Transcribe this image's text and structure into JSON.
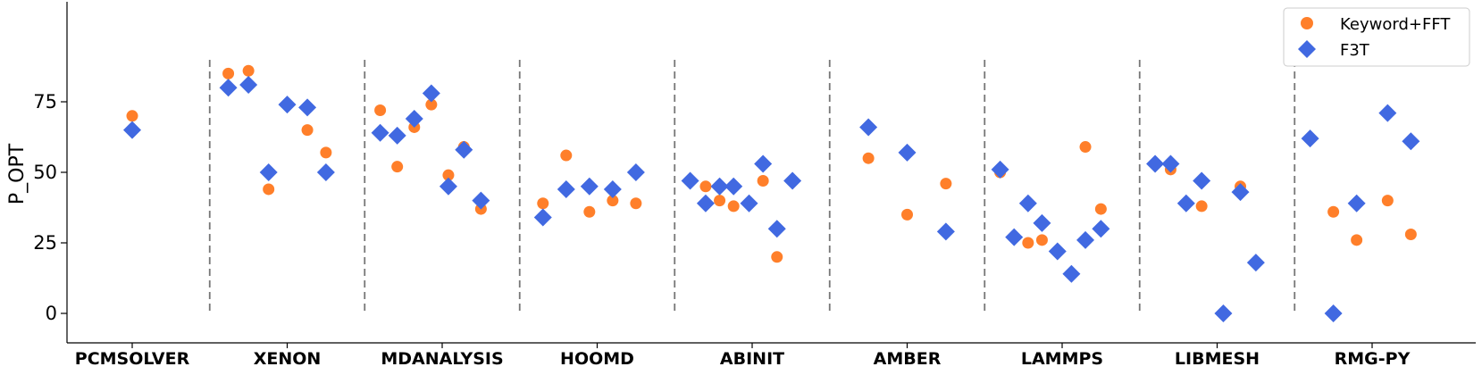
{
  "chart_data": {
    "type": "scatter",
    "ylabel": "P_OPT",
    "xlabel": "",
    "ylim": [
      -10,
      110
    ],
    "yticks": [
      0,
      25,
      50,
      75
    ],
    "categories": [
      "PCMSOLVER",
      "XENON",
      "MDANALYSIS",
      "HOOMD",
      "ABINIT",
      "AMBER",
      "LAMMPS",
      "LIBMESH",
      "RMG-PY"
    ],
    "series": [
      {
        "name": "Keyword+FFT",
        "marker": "circle",
        "color": "#ff7f2a",
        "points": [
          {
            "category": "PCMSOLVER",
            "offset": 0.0,
            "y": 70
          },
          {
            "category": "XENON",
            "offset": -0.38,
            "y": 85
          },
          {
            "category": "XENON",
            "offset": -0.25,
            "y": 86
          },
          {
            "category": "XENON",
            "offset": -0.12,
            "y": 44
          },
          {
            "category": "XENON",
            "offset": 0.13,
            "y": 65
          },
          {
            "category": "XENON",
            "offset": 0.25,
            "y": 57
          },
          {
            "category": "MDANALYSIS",
            "offset": -0.4,
            "y": 72
          },
          {
            "category": "MDANALYSIS",
            "offset": -0.29,
            "y": 52
          },
          {
            "category": "MDANALYSIS",
            "offset": -0.18,
            "y": 66
          },
          {
            "category": "MDANALYSIS",
            "offset": -0.07,
            "y": 74
          },
          {
            "category": "MDANALYSIS",
            "offset": 0.04,
            "y": 49
          },
          {
            "category": "MDANALYSIS",
            "offset": 0.14,
            "y": 59
          },
          {
            "category": "MDANALYSIS",
            "offset": 0.25,
            "y": 37
          },
          {
            "category": "HOOMD",
            "offset": -0.35,
            "y": 39
          },
          {
            "category": "HOOMD",
            "offset": -0.2,
            "y": 56
          },
          {
            "category": "HOOMD",
            "offset": -0.05,
            "y": 36
          },
          {
            "category": "HOOMD",
            "offset": 0.1,
            "y": 40
          },
          {
            "category": "HOOMD",
            "offset": 0.25,
            "y": 39
          },
          {
            "category": "ABINIT",
            "offset": -0.3,
            "y": 45
          },
          {
            "category": "ABINIT",
            "offset": -0.21,
            "y": 40
          },
          {
            "category": "ABINIT",
            "offset": -0.12,
            "y": 38
          },
          {
            "category": "ABINIT",
            "offset": 0.07,
            "y": 47
          },
          {
            "category": "ABINIT",
            "offset": 0.16,
            "y": 20
          },
          {
            "category": "AMBER",
            "offset": -0.25,
            "y": 55
          },
          {
            "category": "AMBER",
            "offset": 0.0,
            "y": 35
          },
          {
            "category": "AMBER",
            "offset": 0.25,
            "y": 46
          },
          {
            "category": "LAMMPS",
            "offset": -0.4,
            "y": 50
          },
          {
            "category": "LAMMPS",
            "offset": -0.22,
            "y": 25
          },
          {
            "category": "LAMMPS",
            "offset": -0.13,
            "y": 26
          },
          {
            "category": "LAMMPS",
            "offset": 0.15,
            "y": 59
          },
          {
            "category": "LAMMPS",
            "offset": 0.25,
            "y": 37
          },
          {
            "category": "LIBMESH",
            "offset": -0.3,
            "y": 51
          },
          {
            "category": "LIBMESH",
            "offset": -0.1,
            "y": 38
          },
          {
            "category": "LIBMESH",
            "offset": 0.15,
            "y": 45
          },
          {
            "category": "RMG-PY",
            "offset": -0.25,
            "y": 36
          },
          {
            "category": "RMG-PY",
            "offset": -0.1,
            "y": 26
          },
          {
            "category": "RMG-PY",
            "offset": 0.1,
            "y": 40
          },
          {
            "category": "RMG-PY",
            "offset": 0.25,
            "y": 28
          }
        ]
      },
      {
        "name": "F3T",
        "marker": "diamond",
        "color": "#4169e1",
        "points": [
          {
            "category": "PCMSOLVER",
            "offset": 0.0,
            "y": 65
          },
          {
            "category": "XENON",
            "offset": -0.38,
            "y": 80
          },
          {
            "category": "XENON",
            "offset": -0.25,
            "y": 81
          },
          {
            "category": "XENON",
            "offset": -0.12,
            "y": 50
          },
          {
            "category": "XENON",
            "offset": 0.0,
            "y": 74
          },
          {
            "category": "XENON",
            "offset": 0.13,
            "y": 73
          },
          {
            "category": "XENON",
            "offset": 0.25,
            "y": 50
          },
          {
            "category": "MDANALYSIS",
            "offset": -0.4,
            "y": 64
          },
          {
            "category": "MDANALYSIS",
            "offset": -0.29,
            "y": 63
          },
          {
            "category": "MDANALYSIS",
            "offset": -0.18,
            "y": 69
          },
          {
            "category": "MDANALYSIS",
            "offset": -0.07,
            "y": 78
          },
          {
            "category": "MDANALYSIS",
            "offset": 0.04,
            "y": 45
          },
          {
            "category": "MDANALYSIS",
            "offset": 0.14,
            "y": 58
          },
          {
            "category": "MDANALYSIS",
            "offset": 0.25,
            "y": 40
          },
          {
            "category": "HOOMD",
            "offset": -0.35,
            "y": 34
          },
          {
            "category": "HOOMD",
            "offset": -0.2,
            "y": 44
          },
          {
            "category": "HOOMD",
            "offset": -0.05,
            "y": 45
          },
          {
            "category": "HOOMD",
            "offset": 0.1,
            "y": 44
          },
          {
            "category": "HOOMD",
            "offset": 0.25,
            "y": 50
          },
          {
            "category": "ABINIT",
            "offset": -0.4,
            "y": 47
          },
          {
            "category": "ABINIT",
            "offset": -0.3,
            "y": 39
          },
          {
            "category": "ABINIT",
            "offset": -0.21,
            "y": 45
          },
          {
            "category": "ABINIT",
            "offset": -0.12,
            "y": 45
          },
          {
            "category": "ABINIT",
            "offset": -0.02,
            "y": 39
          },
          {
            "category": "ABINIT",
            "offset": 0.07,
            "y": 53
          },
          {
            "category": "ABINIT",
            "offset": 0.16,
            "y": 30
          },
          {
            "category": "ABINIT",
            "offset": 0.26,
            "y": 47
          },
          {
            "category": "AMBER",
            "offset": -0.25,
            "y": 66
          },
          {
            "category": "AMBER",
            "offset": 0.0,
            "y": 57
          },
          {
            "category": "AMBER",
            "offset": 0.25,
            "y": 29
          },
          {
            "category": "LAMMPS",
            "offset": -0.4,
            "y": 51
          },
          {
            "category": "LAMMPS",
            "offset": -0.31,
            "y": 27
          },
          {
            "category": "LAMMPS",
            "offset": -0.22,
            "y": 39
          },
          {
            "category": "LAMMPS",
            "offset": -0.13,
            "y": 32
          },
          {
            "category": "LAMMPS",
            "offset": -0.03,
            "y": 22
          },
          {
            "category": "LAMMPS",
            "offset": 0.06,
            "y": 14
          },
          {
            "category": "LAMMPS",
            "offset": 0.15,
            "y": 26
          },
          {
            "category": "LAMMPS",
            "offset": 0.25,
            "y": 30
          },
          {
            "category": "LIBMESH",
            "offset": -0.4,
            "y": 53
          },
          {
            "category": "LIBMESH",
            "offset": -0.3,
            "y": 53
          },
          {
            "category": "LIBMESH",
            "offset": -0.2,
            "y": 39
          },
          {
            "category": "LIBMESH",
            "offset": -0.1,
            "y": 47
          },
          {
            "category": "LIBMESH",
            "offset": 0.04,
            "y": 0
          },
          {
            "category": "LIBMESH",
            "offset": 0.15,
            "y": 43
          },
          {
            "category": "LIBMESH",
            "offset": 0.25,
            "y": 18
          },
          {
            "category": "RMG-PY",
            "offset": -0.4,
            "y": 62
          },
          {
            "category": "RMG-PY",
            "offset": -0.25,
            "y": 0
          },
          {
            "category": "RMG-PY",
            "offset": -0.1,
            "y": 39
          },
          {
            "category": "RMG-PY",
            "offset": 0.1,
            "y": 71
          },
          {
            "category": "RMG-PY",
            "offset": 0.25,
            "y": 61
          }
        ]
      }
    ],
    "separators": true,
    "grid": false,
    "legend": {
      "position": "top-right",
      "entries": [
        "Keyword+FFT",
        "F3T"
      ]
    }
  }
}
